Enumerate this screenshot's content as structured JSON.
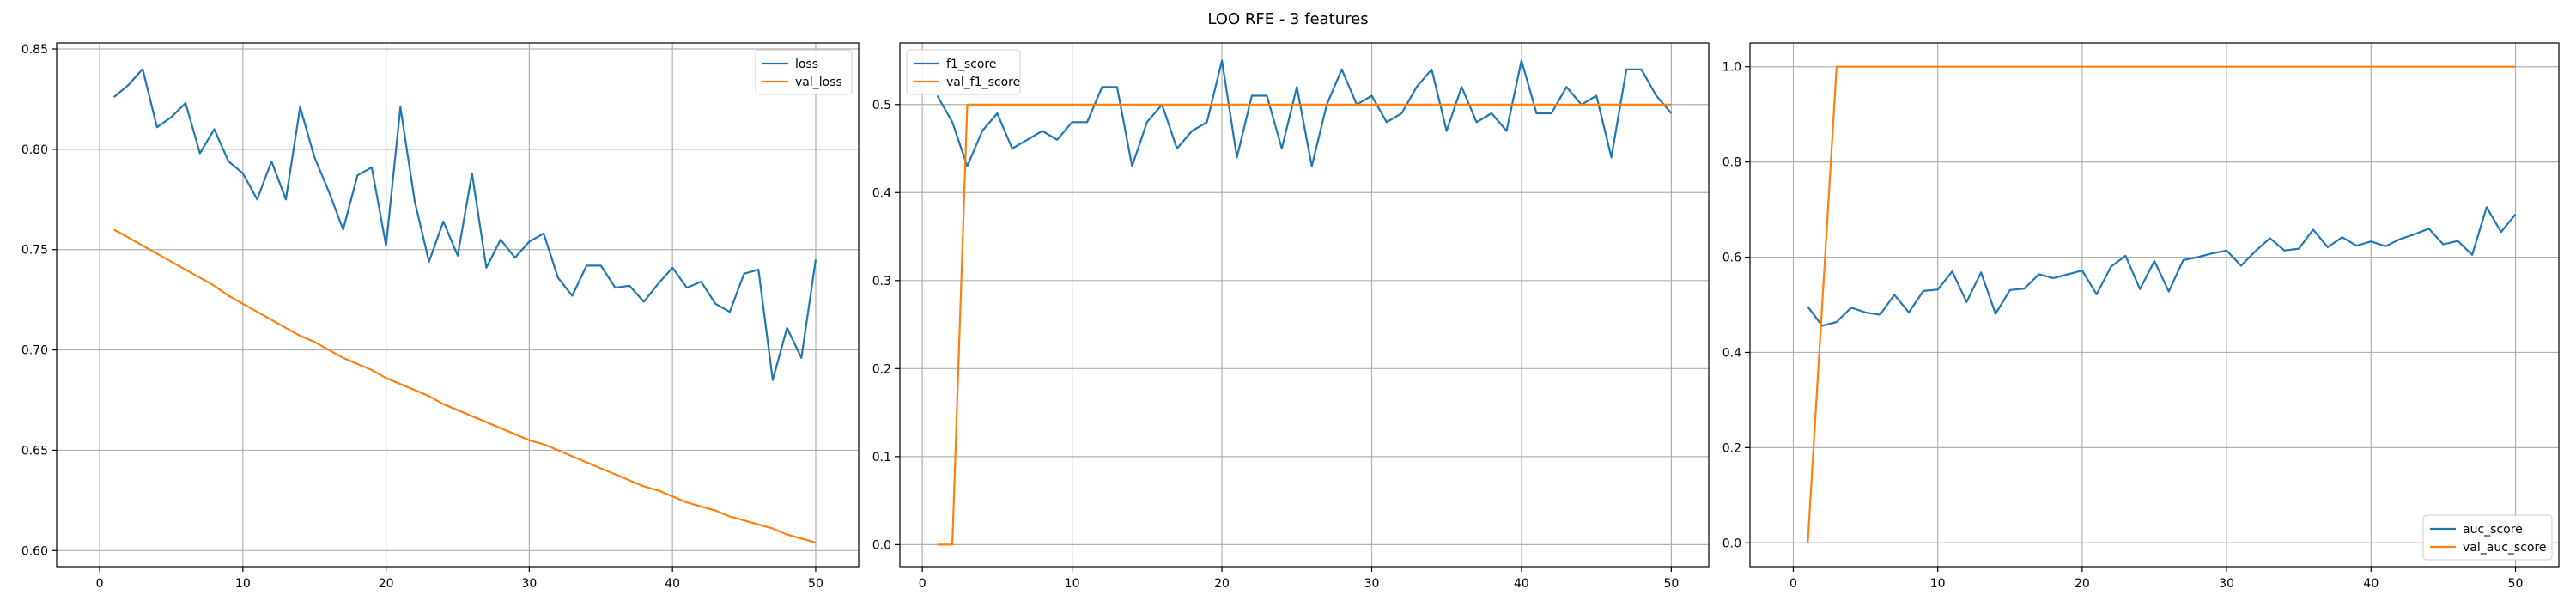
{
  "figure": {
    "suptitle": "LOO RFE - 3 features",
    "colors": {
      "series1": "#1f77b4",
      "series2": "#ff7f0e",
      "grid": "#b0b0b0",
      "axes": "#000000"
    }
  },
  "chart_data": [
    {
      "type": "line",
      "title": "",
      "xlabel": "",
      "ylabel": "",
      "grid": true,
      "legend": "top-right",
      "xlim": [
        -3,
        53
      ],
      "ylim": [
        0.592,
        0.853
      ],
      "xticks": [
        0,
        10,
        20,
        30,
        40,
        50
      ],
      "yticks": [
        0.6,
        0.65,
        0.7,
        0.75,
        0.8,
        0.85
      ],
      "ytick_labels": [
        "0.60",
        "0.65",
        "0.70",
        "0.75",
        "0.80",
        "0.85"
      ],
      "x": [
        1,
        2,
        3,
        4,
        5,
        6,
        7,
        8,
        9,
        10,
        11,
        12,
        13,
        14,
        15,
        16,
        17,
        18,
        19,
        20,
        21,
        22,
        23,
        24,
        25,
        26,
        27,
        28,
        29,
        30,
        31,
        32,
        33,
        34,
        35,
        36,
        37,
        38,
        39,
        40,
        41,
        42,
        43,
        44,
        45,
        46,
        47,
        48,
        49,
        50
      ],
      "series": [
        {
          "name": "loss",
          "color": "#1f77b4",
          "values": [
            0.826,
            0.832,
            0.84,
            0.811,
            0.816,
            0.823,
            0.798,
            0.81,
            0.794,
            0.788,
            0.775,
            0.794,
            0.775,
            0.821,
            0.796,
            0.779,
            0.76,
            0.787,
            0.791,
            0.752,
            0.821,
            0.774,
            0.744,
            0.764,
            0.747,
            0.788,
            0.741,
            0.755,
            0.746,
            0.754,
            0.758,
            0.736,
            0.727,
            0.742,
            0.742,
            0.731,
            0.732,
            0.724,
            0.733,
            0.741,
            0.731,
            0.734,
            0.723,
            0.719,
            0.738,
            0.74,
            0.685,
            0.711,
            0.696,
            0.745
          ]
        },
        {
          "name": "val_loss",
          "color": "#ff7f0e",
          "values": [
            0.76,
            0.756,
            0.752,
            0.748,
            0.744,
            0.74,
            0.736,
            0.732,
            0.727,
            0.723,
            0.719,
            0.715,
            0.711,
            0.707,
            0.704,
            0.7,
            0.696,
            0.693,
            0.69,
            0.686,
            0.683,
            0.68,
            0.677,
            0.673,
            0.67,
            0.667,
            0.664,
            0.661,
            0.658,
            0.655,
            0.653,
            0.65,
            0.647,
            0.644,
            0.641,
            0.638,
            0.635,
            0.632,
            0.63,
            0.627,
            0.624,
            0.622,
            0.62,
            0.617,
            0.615,
            0.613,
            0.611,
            0.608,
            0.606,
            0.604
          ]
        }
      ]
    },
    {
      "type": "line",
      "title": "",
      "xlabel": "",
      "ylabel": "",
      "grid": true,
      "legend": "top-left",
      "xlim": [
        -1.5,
        52.5
      ],
      "ylim": [
        -0.025,
        0.57
      ],
      "xticks": [
        0,
        10,
        20,
        30,
        40,
        50
      ],
      "yticks": [
        0.0,
        0.1,
        0.2,
        0.3,
        0.4,
        0.5
      ],
      "ytick_labels": [
        "0.0",
        "0.1",
        "0.2",
        "0.3",
        "0.4",
        "0.5"
      ],
      "x": [
        1,
        2,
        3,
        4,
        5,
        6,
        7,
        8,
        9,
        10,
        11,
        12,
        13,
        14,
        15,
        16,
        17,
        18,
        19,
        20,
        21,
        22,
        23,
        24,
        25,
        26,
        27,
        28,
        29,
        30,
        31,
        32,
        33,
        34,
        35,
        36,
        37,
        38,
        39,
        40,
        41,
        42,
        43,
        44,
        45,
        46,
        47,
        48,
        49,
        50
      ],
      "series": [
        {
          "name": "f1_score",
          "color": "#1f77b4",
          "values": [
            0.51,
            0.48,
            0.43,
            0.47,
            0.49,
            0.45,
            0.46,
            0.47,
            0.46,
            0.48,
            0.48,
            0.52,
            0.52,
            0.43,
            0.48,
            0.5,
            0.45,
            0.47,
            0.48,
            0.55,
            0.44,
            0.51,
            0.51,
            0.45,
            0.52,
            0.43,
            0.5,
            0.54,
            0.5,
            0.51,
            0.48,
            0.49,
            0.52,
            0.54,
            0.47,
            0.52,
            0.48,
            0.49,
            0.47,
            0.55,
            0.49,
            0.49,
            0.52,
            0.5,
            0.51,
            0.44,
            0.54,
            0.54,
            0.51,
            0.49
          ]
        },
        {
          "name": "val_f1_score",
          "color": "#ff7f0e",
          "values": [
            0.0,
            0.0,
            0.5,
            0.5,
            0.5,
            0.5,
            0.5,
            0.5,
            0.5,
            0.5,
            0.5,
            0.5,
            0.5,
            0.5,
            0.5,
            0.5,
            0.5,
            0.5,
            0.5,
            0.5,
            0.5,
            0.5,
            0.5,
            0.5,
            0.5,
            0.5,
            0.5,
            0.5,
            0.5,
            0.5,
            0.5,
            0.5,
            0.5,
            0.5,
            0.5,
            0.5,
            0.5,
            0.5,
            0.5,
            0.5,
            0.5,
            0.5,
            0.5,
            0.5,
            0.5,
            0.5,
            0.5,
            0.5,
            0.5,
            0.5
          ]
        }
      ]
    },
    {
      "type": "line",
      "title": "",
      "xlabel": "",
      "ylabel": "",
      "grid": true,
      "legend": "bottom-right",
      "xlim": [
        -3,
        53
      ],
      "ylim": [
        -0.05,
        1.05
      ],
      "xticks": [
        0,
        10,
        20,
        30,
        40,
        50
      ],
      "yticks": [
        0.0,
        0.2,
        0.4,
        0.6,
        0.8,
        1.0
      ],
      "ytick_labels": [
        "0.0",
        "0.2",
        "0.4",
        "0.6",
        "0.8",
        "1.0"
      ],
      "x": [
        1,
        2,
        3,
        4,
        5,
        6,
        7,
        8,
        9,
        10,
        11,
        12,
        13,
        14,
        15,
        16,
        17,
        18,
        19,
        20,
        21,
        22,
        23,
        24,
        25,
        26,
        27,
        28,
        29,
        30,
        31,
        32,
        33,
        34,
        35,
        36,
        37,
        38,
        39,
        40,
        41,
        42,
        43,
        44,
        45,
        46,
        47,
        48,
        49,
        50
      ],
      "series": [
        {
          "name": "auc_score",
          "color": "#1f77b4",
          "values": [
            0.496,
            0.456,
            0.464,
            0.494,
            0.484,
            0.479,
            0.521,
            0.484,
            0.529,
            0.532,
            0.57,
            0.506,
            0.568,
            0.481,
            0.531,
            0.534,
            0.564,
            0.556,
            0.564,
            0.572,
            0.522,
            0.58,
            0.603,
            0.533,
            0.592,
            0.528,
            0.594,
            0.6,
            0.608,
            0.614,
            0.582,
            0.613,
            0.64,
            0.614,
            0.618,
            0.658,
            0.621,
            0.642,
            0.624,
            0.633,
            0.623,
            0.638,
            0.648,
            0.66,
            0.627,
            0.634,
            0.605,
            0.705,
            0.653,
            0.69
          ]
        },
        {
          "name": "val_auc_score",
          "color": "#ff7f0e",
          "values": [
            0.0,
            0.5,
            1.0,
            1.0,
            1.0,
            1.0,
            1.0,
            1.0,
            1.0,
            1.0,
            1.0,
            1.0,
            1.0,
            1.0,
            1.0,
            1.0,
            1.0,
            1.0,
            1.0,
            1.0,
            1.0,
            1.0,
            1.0,
            1.0,
            1.0,
            1.0,
            1.0,
            1.0,
            1.0,
            1.0,
            1.0,
            1.0,
            1.0,
            1.0,
            1.0,
            1.0,
            1.0,
            1.0,
            1.0,
            1.0,
            1.0,
            1.0,
            1.0,
            1.0,
            1.0,
            1.0,
            1.0,
            1.0,
            1.0,
            1.0
          ]
        }
      ]
    }
  ]
}
